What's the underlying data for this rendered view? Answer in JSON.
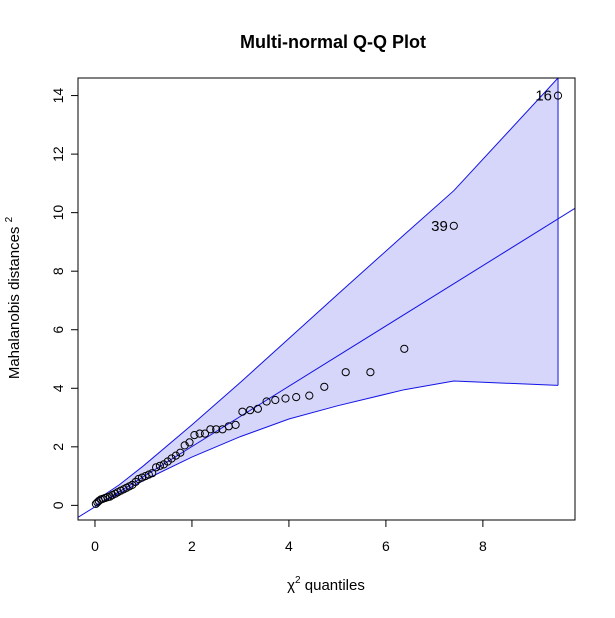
{
  "chart_data": {
    "type": "scatter",
    "title": "Multi-normal Q-Q Plot",
    "xlabel": {
      "symbol": "χ",
      "superscript": "2",
      "text": " quantiles"
    },
    "ylabel": {
      "text": "Mahalanobis distances ",
      "superscript": "2"
    },
    "xlim": [
      -0.35,
      9.9
    ],
    "ylim": [
      -0.5,
      14.6
    ],
    "xticks": [
      0,
      2,
      4,
      6,
      8
    ],
    "yticks": [
      0,
      2,
      4,
      6,
      8,
      10,
      12,
      14
    ],
    "grid": false,
    "colors": {
      "band_fill": "#d6d6fa",
      "band_line": "#1414e6",
      "points": "#000000"
    },
    "reference_line": {
      "slope": 1.03,
      "intercept": -0.05
    },
    "envelope": {
      "x": [
        0.0,
        0.5,
        1.0,
        2.0,
        3.0,
        4.0,
        5.0,
        6.38,
        7.4,
        9.55
      ],
      "upper": [
        0.15,
        0.7,
        1.35,
        2.75,
        4.2,
        5.7,
        7.2,
        9.25,
        10.75,
        14.6
      ],
      "lower": [
        0.0,
        0.4,
        0.85,
        1.65,
        2.35,
        2.95,
        3.4,
        3.95,
        4.25,
        4.1
      ]
    },
    "points": {
      "x": [
        0.02,
        0.05,
        0.08,
        0.12,
        0.16,
        0.21,
        0.26,
        0.31,
        0.36,
        0.42,
        0.47,
        0.53,
        0.59,
        0.65,
        0.71,
        0.77,
        0.84,
        0.9,
        0.97,
        1.04,
        1.11,
        1.18,
        1.26,
        1.34,
        1.42,
        1.5,
        1.58,
        1.67,
        1.76,
        1.85,
        1.95,
        2.05,
        2.16,
        2.27,
        2.38,
        2.5,
        2.63,
        2.76,
        2.9,
        3.04,
        3.2,
        3.36,
        3.54,
        3.72,
        3.93,
        4.15,
        4.42,
        4.73,
        5.17,
        5.68,
        6.38,
        7.4,
        9.55
      ],
      "y": [
        0.05,
        0.1,
        0.15,
        0.2,
        0.22,
        0.25,
        0.28,
        0.3,
        0.35,
        0.4,
        0.45,
        0.5,
        0.55,
        0.6,
        0.65,
        0.7,
        0.8,
        0.9,
        0.95,
        1.0,
        1.05,
        1.1,
        1.3,
        1.35,
        1.4,
        1.5,
        1.6,
        1.7,
        1.8,
        2.05,
        2.15,
        2.4,
        2.45,
        2.45,
        2.6,
        2.6,
        2.6,
        2.7,
        2.75,
        3.2,
        3.25,
        3.3,
        3.55,
        3.6,
        3.65,
        3.7,
        3.75,
        4.05,
        4.55,
        4.55,
        5.35,
        9.55,
        14.0
      ]
    },
    "labeled_points": [
      {
        "label": "16",
        "x": 9.55,
        "y": 14.0
      },
      {
        "label": "39",
        "x": 7.4,
        "y": 9.55
      }
    ]
  }
}
